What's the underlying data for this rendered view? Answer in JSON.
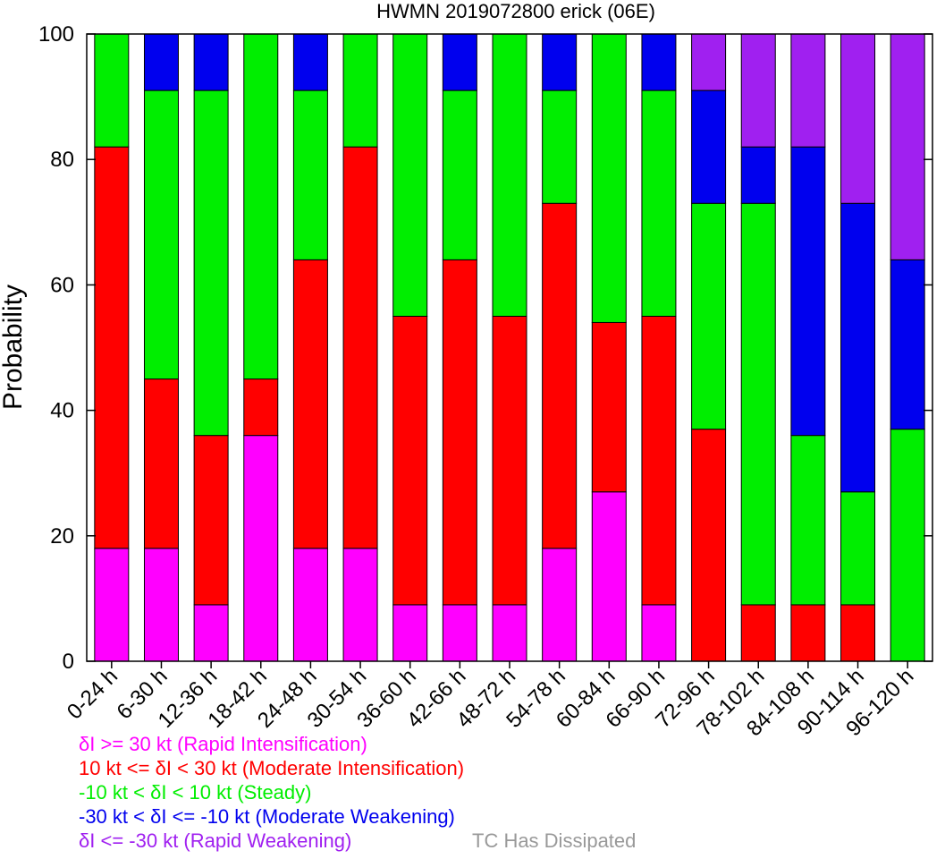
{
  "chart_data": {
    "type": "bar",
    "stacked": true,
    "title": "HWMN 2019072800 erick (06E)",
    "ylabel": "Probability",
    "xlabel": "",
    "ylim": [
      0,
      100
    ],
    "yticks": [
      0,
      20,
      40,
      60,
      80,
      100
    ],
    "grid": false,
    "categories": [
      "0-24 h",
      "6-30 h",
      "12-36 h",
      "18-42 h",
      "24-48 h",
      "30-54 h",
      "36-60 h",
      "42-66 h",
      "48-72 h",
      "54-78 h",
      "60-84 h",
      "66-90 h",
      "72-96 h",
      "78-102 h",
      "84-108 h",
      "90-114 h",
      "96-120 h"
    ],
    "series": [
      {
        "name": "Rapid Intensification",
        "color": "#ff00ff",
        "values": [
          18,
          18,
          9,
          36,
          18,
          18,
          9,
          9,
          9,
          18,
          27,
          9,
          0,
          0,
          0,
          0,
          0
        ]
      },
      {
        "name": "Moderate Intensification",
        "color": "#ff0000",
        "values": [
          64,
          27,
          27,
          9,
          46,
          64,
          46,
          55,
          46,
          55,
          27,
          46,
          37,
          9,
          9,
          9,
          0
        ]
      },
      {
        "name": "Steady",
        "color": "#00ee00",
        "values": [
          18,
          46,
          55,
          55,
          27,
          18,
          45,
          27,
          45,
          18,
          46,
          36,
          36,
          64,
          27,
          18,
          37
        ]
      },
      {
        "name": "Moderate Weakening",
        "color": "#0000ee",
        "values": [
          0,
          9,
          9,
          0,
          9,
          0,
          0,
          9,
          0,
          9,
          0,
          9,
          18,
          9,
          46,
          46,
          27
        ]
      },
      {
        "name": "Rapid Weakening",
        "color": "#a020f0",
        "values": [
          0,
          0,
          0,
          0,
          0,
          0,
          0,
          0,
          0,
          0,
          0,
          0,
          9,
          18,
          18,
          27,
          36
        ]
      }
    ]
  },
  "legend": [
    {
      "text": "δI >= 30 kt (Rapid Intensification)",
      "color": "#ff00ff"
    },
    {
      "text": "10 kt <= δI < 30 kt (Moderate Intensification)",
      "color": "#ff0000"
    },
    {
      "text": "-10 kt < δI < 10 kt (Steady)",
      "color": "#00ee00"
    },
    {
      "text": "-30 kt < δI <= -10 kt (Moderate Weakening)",
      "color": "#0000ee"
    },
    {
      "text": "δI <= -30 kt (Rapid Weakening)",
      "color": "#a020f0"
    }
  ],
  "dissipated_note": {
    "text": "TC Has Dissipated",
    "color": "#999999"
  }
}
